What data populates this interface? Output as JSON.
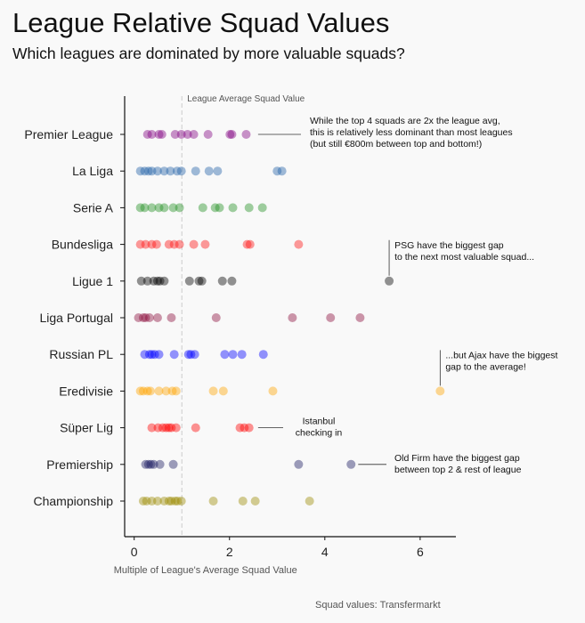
{
  "chart_data": {
    "type": "scatter",
    "title": "League Relative Squad Values",
    "subtitle": "Which leagues are dominated by more valuable squads?",
    "xlabel": "Multiple of League's Average Squad Value",
    "ylabel": "",
    "xlim": [
      -0.2,
      6.75
    ],
    "xticks": [
      0,
      2,
      4,
      6
    ],
    "grid": false,
    "reference_line": {
      "x": 1,
      "label": "League Average Squad Value"
    },
    "source": "Squad values: Transfermarkt",
    "series": [
      {
        "name": "Premier League",
        "color": "#800080",
        "values": [
          0.28,
          0.37,
          0.52,
          0.58,
          0.86,
          0.99,
          1.12,
          1.25,
          1.55,
          2.01,
          2.05,
          2.35
        ]
      },
      {
        "name": "La Liga",
        "color": "#1f5fa8",
        "values": [
          0.13,
          0.22,
          0.3,
          0.37,
          0.49,
          0.63,
          0.76,
          0.9,
          0.99,
          1.29,
          1.57,
          1.75,
          3.0,
          3.1
        ]
      },
      {
        "name": "Serie A",
        "color": "#1f8f1f",
        "values": [
          0.13,
          0.22,
          0.37,
          0.52,
          0.63,
          0.82,
          0.95,
          1.44,
          1.7,
          1.79,
          2.07,
          2.41,
          2.69
        ]
      },
      {
        "name": "Bundesliga",
        "color": "#ff1010",
        "values": [
          0.13,
          0.24,
          0.37,
          0.47,
          0.73,
          0.84,
          0.95,
          1.25,
          1.49,
          2.37,
          2.43,
          3.45
        ]
      },
      {
        "name": "Ligue 1",
        "color": "#000000",
        "values": [
          0.15,
          0.28,
          0.41,
          0.49,
          0.54,
          0.63,
          1.16,
          1.36,
          1.42,
          1.85,
          2.05,
          5.35
        ]
      },
      {
        "name": "Liga Portugal",
        "color": "#8b0a3a",
        "values": [
          0.09,
          0.19,
          0.24,
          0.32,
          0.49,
          0.78,
          1.72,
          3.32,
          4.12,
          4.74
        ]
      },
      {
        "name": "Russian PL",
        "color": "#0000ff",
        "values": [
          0.22,
          0.32,
          0.37,
          0.43,
          0.52,
          0.84,
          1.14,
          1.19,
          1.27,
          1.9,
          2.07,
          2.26,
          2.71
        ]
      },
      {
        "name": "Eredivisie",
        "color": "#ffa500",
        "values": [
          0.13,
          0.19,
          0.28,
          0.34,
          0.52,
          0.67,
          0.8,
          0.88,
          1.66,
          1.87,
          2.91,
          6.42
        ]
      },
      {
        "name": "Süper Lig",
        "color": "#ff0000",
        "values": [
          0.37,
          0.5,
          0.6,
          0.67,
          0.73,
          0.78,
          0.88,
          1.29,
          2.22,
          2.31,
          2.41
        ]
      },
      {
        "name": "Premiership",
        "color": "#191960",
        "values": [
          0.24,
          0.3,
          0.35,
          0.41,
          0.54,
          0.82,
          3.45,
          4.55
        ]
      },
      {
        "name": "Championship",
        "color": "#9a8a00",
        "values": [
          0.19,
          0.26,
          0.37,
          0.49,
          0.63,
          0.73,
          0.78,
          0.86,
          0.91,
          0.99,
          1.66,
          2.28,
          2.54,
          3.68
        ]
      }
    ],
    "annotations": [
      {
        "league": "Premier League",
        "at": 2.6,
        "lines": [
          "While the top 4 squads are 2x the league avg,",
          "this is relatively less dominant than most leagues",
          "(but still €800m between top and bottom!)"
        ]
      },
      {
        "league": "Ligue 1",
        "at": 5.35,
        "lines": [
          "PSG have the biggest gap",
          "to the next most valuable squad..."
        ]
      },
      {
        "league": "Eredivisie",
        "at": 6.42,
        "lines": [
          "...but Ajax have the biggest",
          "gap to the average!"
        ]
      },
      {
        "league": "Süper Lig",
        "at": 2.6,
        "lines": [
          "Istanbul",
          "checking in"
        ]
      },
      {
        "league": "Premiership",
        "at": 4.7,
        "lines": [
          "Old Firm have the biggest gap",
          "between top 2 & rest of league"
        ]
      }
    ]
  }
}
